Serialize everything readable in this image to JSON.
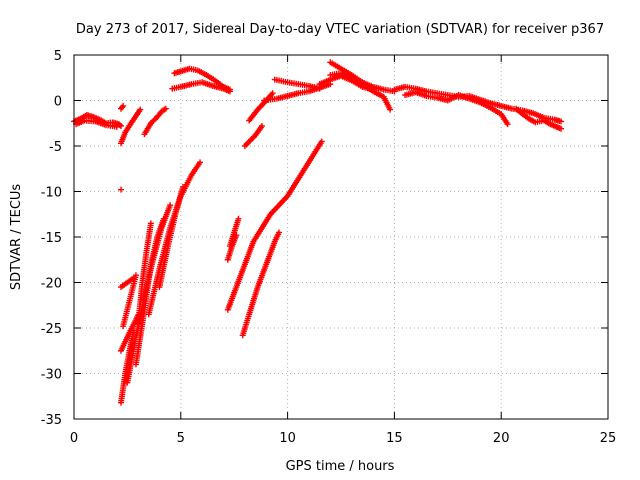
{
  "chart_data": {
    "type": "scatter",
    "title": "Day 273 of 2017, Sidereal Day-to-day VTEC variation (SDTVAR) for receiver p367",
    "xlabel": "GPS time / hours",
    "ylabel": "SDTVAR / TECUs",
    "xlim": [
      0,
      25
    ],
    "ylim": [
      -35,
      5
    ],
    "xticks": [
      0,
      5,
      10,
      15,
      20,
      25
    ],
    "yticks": [
      5,
      0,
      -5,
      -10,
      -15,
      -20,
      -25,
      -30,
      -35
    ],
    "grid": true,
    "marker": "+",
    "series": [
      {
        "name": "SDTVAR",
        "color": "#ff0000",
        "segments": [
          [
            [
              0,
              -2.3
            ],
            [
              0.3,
              -2.0
            ],
            [
              0.6,
              -1.6
            ],
            [
              0.9,
              -1.8
            ],
            [
              1.2,
              -2.1
            ],
            [
              1.5,
              -2.5
            ],
            [
              1.8,
              -2.4
            ],
            [
              2.1,
              -2.6
            ],
            [
              2.2,
              -2.8
            ]
          ],
          [
            [
              0.1,
              -2.6
            ],
            [
              0.5,
              -2.2
            ],
            [
              1.0,
              -2.3
            ],
            [
              1.5,
              -2.7
            ],
            [
              2.0,
              -2.9
            ]
          ],
          [
            [
              2.2,
              -0.9
            ],
            [
              2.3,
              -0.6
            ]
          ],
          [
            [
              2.2,
              -9.8
            ]
          ],
          [
            [
              2.2,
              -4.7
            ],
            [
              2.4,
              -3.5
            ],
            [
              2.7,
              -2.4
            ],
            [
              2.9,
              -1.7
            ],
            [
              3.1,
              -1.0
            ]
          ],
          [
            [
              3.3,
              -3.7
            ],
            [
              3.6,
              -2.5
            ],
            [
              3.9,
              -1.8
            ],
            [
              4.1,
              -1.2
            ],
            [
              4.3,
              -0.9
            ]
          ],
          [
            [
              4.6,
              1.3
            ],
            [
              5.0,
              1.5
            ],
            [
              5.5,
              1.8
            ],
            [
              6.0,
              2.0
            ],
            [
              6.5,
              1.6
            ],
            [
              7.0,
              1.3
            ],
            [
              7.3,
              1.0
            ]
          ],
          [
            [
              4.7,
              3.0
            ],
            [
              5.0,
              3.2
            ],
            [
              5.4,
              3.5
            ],
            [
              5.8,
              3.3
            ],
            [
              6.2,
              2.8
            ],
            [
              6.6,
              2.2
            ],
            [
              7.0,
              1.5
            ],
            [
              7.3,
              1.2
            ]
          ],
          [
            [
              2.2,
              -20.5
            ],
            [
              2.5,
              -20.0
            ],
            [
              2.8,
              -19.5
            ]
          ],
          [
            [
              2.3,
              -24.8
            ],
            [
              2.6,
              -22.0
            ],
            [
              2.9,
              -19.2
            ]
          ],
          [
            [
              2.2,
              -27.5
            ],
            [
              2.6,
              -25.5
            ],
            [
              3.0,
              -23.6
            ]
          ],
          [
            [
              2.2,
              -33.2
            ],
            [
              2.4,
              -30.0
            ],
            [
              2.6,
              -27.5
            ],
            [
              2.8,
              -25.3
            ]
          ],
          [
            [
              2.5,
              -31.0
            ],
            [
              2.9,
              -26.0
            ],
            [
              3.3,
              -21.5
            ],
            [
              3.7,
              -17.5
            ],
            [
              4.1,
              -14.0
            ],
            [
              4.5,
              -11.5
            ]
          ],
          [
            [
              2.9,
              -29.0
            ],
            [
              3.3,
              -23.0
            ],
            [
              3.6,
              -18.0
            ],
            [
              3.9,
              -15.0
            ],
            [
              4.2,
              -13.0
            ]
          ],
          [
            [
              3.0,
              -24.5
            ],
            [
              3.2,
              -20.0
            ],
            [
              3.4,
              -16.5
            ],
            [
              3.6,
              -13.5
            ]
          ],
          [
            [
              3.5,
              -23.5
            ],
            [
              4.0,
              -18.5
            ],
            [
              4.5,
              -14.0
            ],
            [
              5.0,
              -10.5
            ],
            [
              5.5,
              -8.2
            ],
            [
              5.9,
              -6.8
            ]
          ],
          [
            [
              4.0,
              -20.5
            ],
            [
              4.4,
              -16.0
            ],
            [
              4.8,
              -12.0
            ],
            [
              5.1,
              -9.5
            ]
          ],
          [
            [
              7.3,
              -16.0
            ],
            [
              7.5,
              -14.5
            ],
            [
              7.7,
              -13.0
            ]
          ],
          [
            [
              7.2,
              -17.5
            ],
            [
              7.4,
              -16.0
            ],
            [
              7.6,
              -14.8
            ]
          ],
          [
            [
              7.2,
              -23.0
            ],
            [
              7.6,
              -20.5
            ],
            [
              8.0,
              -18.0
            ],
            [
              8.4,
              -15.5
            ],
            [
              8.8,
              -14.0
            ],
            [
              9.2,
              -12.5
            ],
            [
              9.6,
              -11.5
            ],
            [
              10.0,
              -10.5
            ],
            [
              10.4,
              -9.0
            ],
            [
              10.8,
              -7.5
            ],
            [
              11.2,
              -6.0
            ],
            [
              11.6,
              -4.5
            ]
          ],
          [
            [
              7.9,
              -25.8
            ],
            [
              8.2,
              -23.5
            ],
            [
              8.6,
              -20.5
            ],
            [
              9.0,
              -18.0
            ],
            [
              9.4,
              -15.5
            ],
            [
              9.6,
              -14.5
            ]
          ],
          [
            [
              8.0,
              -5.0
            ],
            [
              8.5,
              -3.8
            ],
            [
              8.8,
              -2.8
            ]
          ],
          [
            [
              8.2,
              -2.2
            ],
            [
              8.6,
              -1.0
            ],
            [
              9.0,
              0.0
            ],
            [
              9.3,
              0.8
            ]
          ],
          [
            [
              8.9,
              0.0
            ],
            [
              9.5,
              0.2
            ],
            [
              10.0,
              0.5
            ],
            [
              10.5,
              0.8
            ],
            [
              11.0,
              1.0
            ],
            [
              11.5,
              1.4
            ],
            [
              12.0,
              1.8
            ]
          ],
          [
            [
              9.4,
              2.3
            ],
            [
              10.0,
              2.0
            ],
            [
              10.5,
              1.8
            ],
            [
              11.0,
              1.6
            ],
            [
              11.5,
              1.3
            ]
          ],
          [
            [
              12.0,
              4.2
            ],
            [
              12.5,
              3.5
            ],
            [
              13.0,
              2.8
            ],
            [
              13.5,
              2.0
            ],
            [
              14.0,
              1.5
            ],
            [
              14.5,
              1.2
            ],
            [
              15.0,
              1.0
            ]
          ],
          [
            [
              12.0,
              2.8
            ],
            [
              12.5,
              3.0
            ],
            [
              13.0,
              2.5
            ],
            [
              13.5,
              1.8
            ],
            [
              14.0,
              1.0
            ],
            [
              14.5,
              0.4
            ],
            [
              14.8,
              -1.0
            ]
          ],
          [
            [
              11.5,
              1.8
            ],
            [
              12.0,
              2.3
            ],
            [
              12.5,
              2.7
            ],
            [
              13.0,
              2.2
            ],
            [
              13.5,
              1.5
            ],
            [
              14.0,
              1.2
            ]
          ],
          [
            [
              15.0,
              1.2
            ],
            [
              15.5,
              1.5
            ],
            [
              16.0,
              1.3
            ],
            [
              16.5,
              1.0
            ],
            [
              17.0,
              0.8
            ],
            [
              17.5,
              0.6
            ],
            [
              18.0,
              0.4
            ],
            [
              18.5,
              0.5
            ],
            [
              19.0,
              0.1
            ],
            [
              19.5,
              -0.3
            ],
            [
              20.0,
              -0.6
            ],
            [
              20.5,
              -0.9
            ],
            [
              21.0,
              -1.1
            ],
            [
              21.5,
              -1.4
            ],
            [
              22.0,
              -1.9
            ],
            [
              22.5,
              -2.1
            ],
            [
              22.8,
              -2.3
            ]
          ],
          [
            [
              15.5,
              0.6
            ],
            [
              16.0,
              0.9
            ],
            [
              16.5,
              0.5
            ],
            [
              17.0,
              0.3
            ],
            [
              17.5,
              0.0
            ],
            [
              18.0,
              0.6
            ],
            [
              18.5,
              0.2
            ],
            [
              19.0,
              -0.2
            ],
            [
              19.5,
              -0.8
            ],
            [
              20.0,
              -1.5
            ],
            [
              20.3,
              -2.6
            ]
          ],
          [
            [
              20.7,
              -0.9
            ],
            [
              21.0,
              -1.5
            ],
            [
              21.3,
              -2.0
            ],
            [
              21.6,
              -2.4
            ],
            [
              22.0,
              -2.2
            ],
            [
              22.3,
              -2.6
            ],
            [
              22.6,
              -2.9
            ],
            [
              22.8,
              -3.1
            ]
          ]
        ]
      }
    ]
  }
}
